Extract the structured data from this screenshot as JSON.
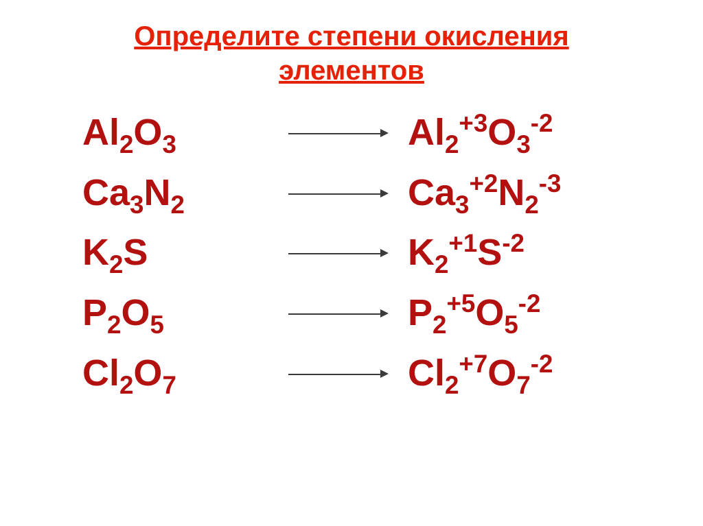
{
  "colors": {
    "title": "#e52207",
    "formula": "#b31010",
    "arrow": "#3b3b3b",
    "background": "#ffffff"
  },
  "fontsizes": {
    "title_pt": 40,
    "formula_pt": 54
  },
  "title": {
    "line1": "Определите степени окисления",
    "line2": "элементов"
  },
  "rows": [
    {
      "left": [
        {
          "el": "Al",
          "sub": "2"
        },
        {
          "el": "O",
          "sub": "3"
        }
      ],
      "right": [
        {
          "el": "Al",
          "sub": "2",
          "sup": "+3"
        },
        {
          "el": "O",
          "sub": "3",
          "sup": "-2"
        }
      ]
    },
    {
      "left": [
        {
          "el": "Ca",
          "sub": "3"
        },
        {
          "el": "N",
          "sub": "2"
        }
      ],
      "right": [
        {
          "el": "Ca",
          "sub": "3",
          "sup": "+2"
        },
        {
          "el": "N",
          "sub": "2",
          "sup": "-3"
        }
      ]
    },
    {
      "left": [
        {
          "el": "K",
          "sub": "2"
        },
        {
          "el": "S",
          "sub": ""
        }
      ],
      "right": [
        {
          "el": "K",
          "sub": "2",
          "sup": "+1"
        },
        {
          "el": "S",
          "sub": "",
          "sup": "-2"
        }
      ]
    },
    {
      "left": [
        {
          "el": "P",
          "sub": "2"
        },
        {
          "el": "O",
          "sub": "5"
        }
      ],
      "right": [
        {
          "el": "P",
          "sub": "2",
          "sup": "+5"
        },
        {
          "el": "O",
          "sub": "5",
          "sup": "-2"
        }
      ]
    },
    {
      "left": [
        {
          "el": "Cl",
          "sub": "2"
        },
        {
          "el": "O",
          "sub": "7"
        }
      ],
      "right": [
        {
          "el": "Cl",
          "sub": "2",
          "sup": "+7"
        },
        {
          "el": "O",
          "sub": "7",
          "sup": "-2"
        }
      ]
    }
  ]
}
